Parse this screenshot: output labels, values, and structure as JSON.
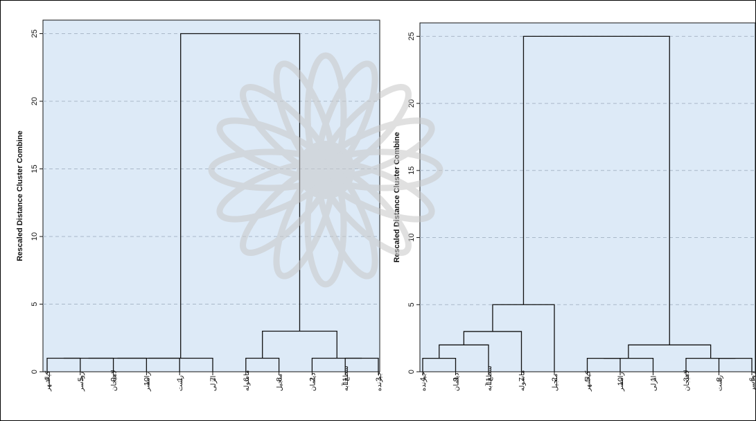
{
  "chart_data": [
    {
      "type": "dendrogram",
      "ylabel": "Rescaled Distance Cluster Combine",
      "ylim": [
        0,
        26
      ],
      "yticks": [
        0,
        5,
        10,
        15,
        20,
        25
      ],
      "grid": true,
      "leaves": [
        {
          "num": "4",
          "name": "کیاشهر"
        },
        {
          "num": "5",
          "name": "رودسر"
        },
        {
          "num": "9",
          "name": "لاهیجان"
        },
        {
          "num": "10",
          "name": "رامسر"
        },
        {
          "num": "1",
          "name": "رشت"
        },
        {
          "num": "7",
          "name": "انزلی"
        },
        {
          "num": "6",
          "name": "ماسوله"
        },
        {
          "num": "8",
          "name": "منجیل"
        },
        {
          "num": "2",
          "name": "دیلمان"
        },
        {
          "num": "11",
          "name": "سطح آبه"
        },
        {
          "num": "3",
          "name": "جیرنده"
        }
      ],
      "merges": [
        {
          "a": 0,
          "b": 1,
          "height": 1
        },
        {
          "a": 11,
          "b": 2,
          "height": 1
        },
        {
          "a": 12,
          "b": 3,
          "height": 1
        },
        {
          "a": 13,
          "b": 4,
          "height": 1
        },
        {
          "a": 14,
          "b": 5,
          "height": 1
        },
        {
          "a": 6,
          "b": 7,
          "height": 1
        },
        {
          "a": 9,
          "b": 10,
          "height": 1
        },
        {
          "a": 8,
          "b": 17,
          "height": 1
        },
        {
          "a": 16,
          "b": 18,
          "height": 3
        },
        {
          "a": 15,
          "b": 19,
          "height": 25
        }
      ]
    },
    {
      "type": "dendrogram",
      "ylabel": "Rescaled Distance Cluster Combine",
      "ylim": [
        0,
        26
      ],
      "yticks": [
        0,
        5,
        10,
        15,
        20,
        25
      ],
      "grid": true,
      "leaves": [
        {
          "num": "4",
          "name": "جیرنده"
        },
        {
          "num": "9",
          "name": "دیلمان"
        },
        {
          "num": "11",
          "name": "سطح آبه"
        },
        {
          "num": "7",
          "name": "ماسوله"
        },
        {
          "num": "2",
          "name": "منجیل"
        },
        {
          "num": "5",
          "name": "کیاشهر"
        },
        {
          "num": "10",
          "name": "رامسر"
        },
        {
          "num": "1",
          "name": "انزلی"
        },
        {
          "num": "3",
          "name": "لاهیجان"
        },
        {
          "num": "8",
          "name": "رشت"
        },
        {
          "num": "6",
          "name": "رودسر"
        }
      ],
      "merges": [
        {
          "a": 0,
          "b": 1,
          "height": 1
        },
        {
          "a": 11,
          "b": 2,
          "height": 2
        },
        {
          "a": 12,
          "b": 3,
          "height": 3
        },
        {
          "a": 13,
          "b": 4,
          "height": 5
        },
        {
          "a": 5,
          "b": 6,
          "height": 1
        },
        {
          "a": 15,
          "b": 7,
          "height": 1
        },
        {
          "a": 9,
          "b": 10,
          "height": 1
        },
        {
          "a": 8,
          "b": 17,
          "height": 1
        },
        {
          "a": 16,
          "b": 18,
          "height": 2
        },
        {
          "a": 14,
          "b": 19,
          "height": 25
        }
      ]
    }
  ],
  "colors": {
    "plot_background": "#ddeaf7",
    "grid": "#a9b8c8",
    "line": "#111111",
    "watermark": "#c8c8c8"
  }
}
